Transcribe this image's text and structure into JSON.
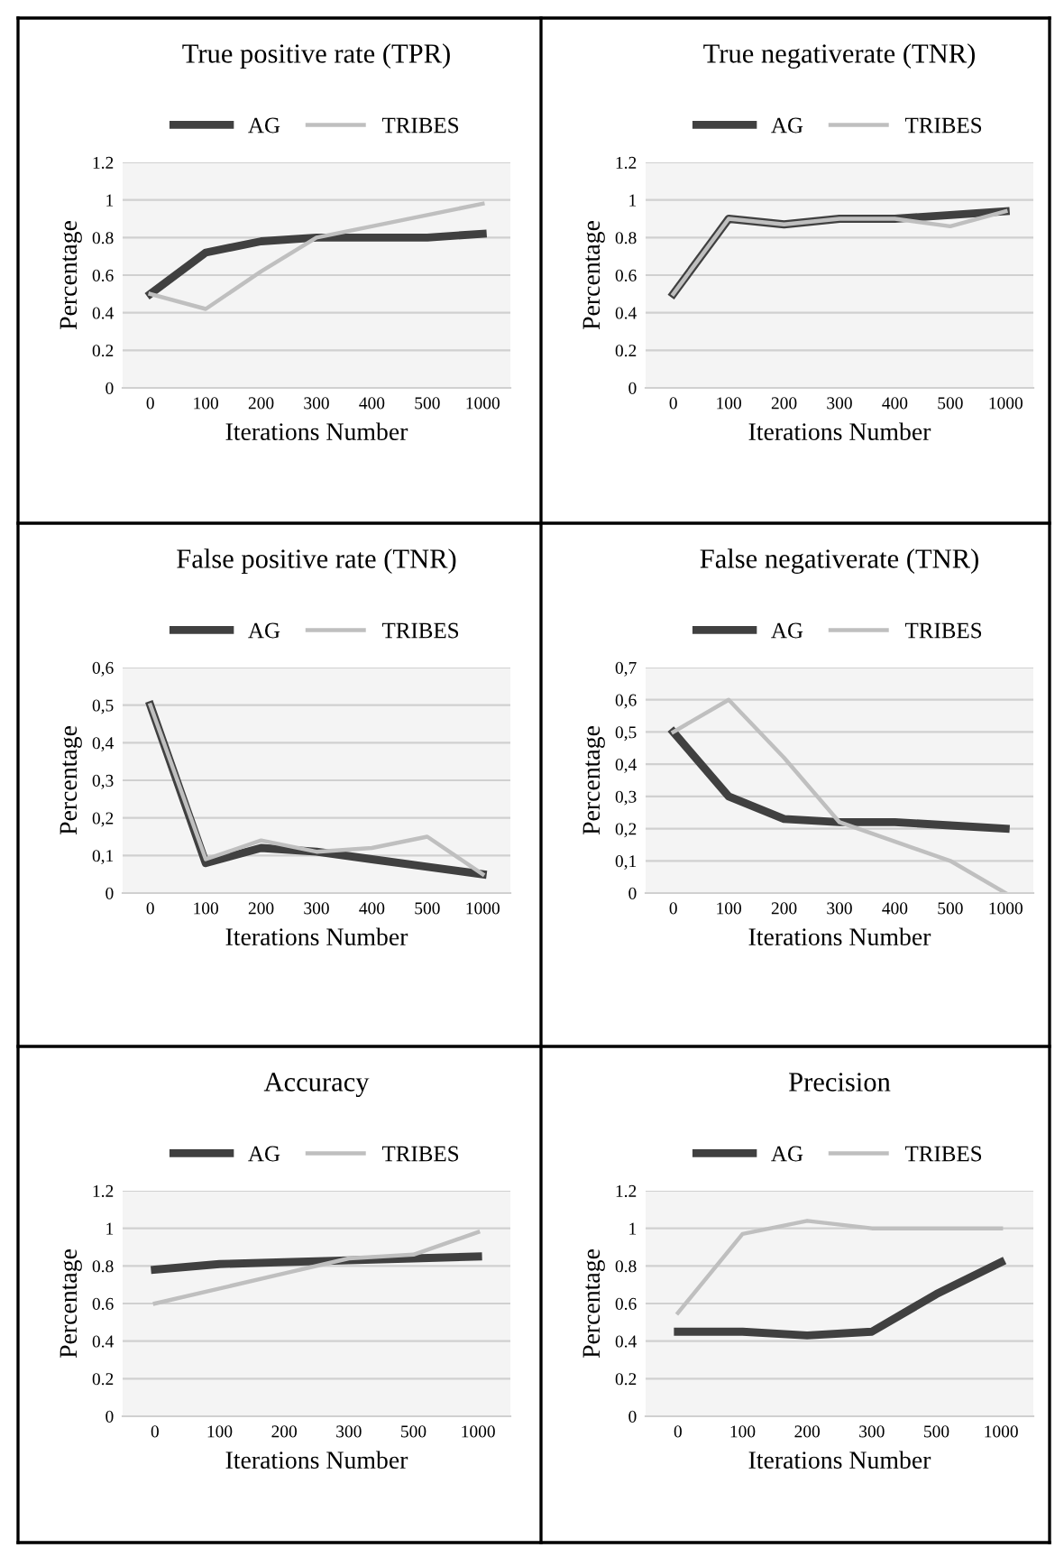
{
  "chart_data": [
    {
      "type": "line",
      "title": "True positive rate (TPR)",
      "xlabel": "Iterations Number",
      "ylabel": "Percentage",
      "categories": [
        "0",
        "100",
        "200",
        "300",
        "400",
        "500",
        "1000"
      ],
      "series": [
        {
          "name": "AG",
          "color": "#404040",
          "values": [
            0.5,
            0.72,
            0.78,
            0.8,
            0.8,
            0.8,
            0.82
          ]
        },
        {
          "name": "TRIBES",
          "color": "#bfbfbf",
          "values": [
            0.5,
            0.42,
            0.62,
            0.8,
            0.86,
            0.92,
            0.98
          ]
        }
      ],
      "ylim": [
        0,
        1.2
      ],
      "yticks": [
        0,
        0.2,
        0.4,
        0.6,
        0.8,
        1,
        1.2
      ],
      "grid": "y",
      "legend": "top"
    },
    {
      "type": "line",
      "title": "True negativerate (TNR)",
      "xlabel": "Iterations Number",
      "ylabel": "Percentage",
      "categories": [
        "0",
        "100",
        "200",
        "300",
        "400",
        "500",
        "1000"
      ],
      "series": [
        {
          "name": "AG",
          "color": "#404040",
          "values": [
            0.5,
            0.9,
            0.87,
            0.9,
            0.9,
            0.92,
            0.94
          ]
        },
        {
          "name": "TRIBES",
          "color": "#bfbfbf",
          "values": [
            0.5,
            0.9,
            0.87,
            0.9,
            0.9,
            0.86,
            0.94
          ]
        }
      ],
      "ylim": [
        0,
        1.2
      ],
      "yticks": [
        0,
        0.2,
        0.4,
        0.6,
        0.8,
        1,
        1.2
      ],
      "grid": "y",
      "legend": "top"
    },
    {
      "type": "line",
      "title": "False positive rate (TNR)",
      "xlabel": "Iterations Number",
      "ylabel": "Percentage",
      "categories": [
        "0",
        "100",
        "200",
        "300",
        "400",
        "500",
        "1000"
      ],
      "series": [
        {
          "name": "AG",
          "color": "#404040",
          "values": [
            0.5,
            0.08,
            0.12,
            0.11,
            0.09,
            0.07,
            0.05
          ]
        },
        {
          "name": "TRIBES",
          "color": "#bfbfbf",
          "values": [
            0.5,
            0.09,
            0.14,
            0.11,
            0.12,
            0.15,
            0.05
          ]
        }
      ],
      "ylim": [
        0,
        0.6
      ],
      "yticks": [
        0,
        {
          "value": 0.1,
          "label": "0,1"
        },
        {
          "value": 0.2,
          "label": "0,2"
        },
        {
          "value": 0.3,
          "label": "0,3"
        },
        {
          "value": 0.4,
          "label": "0,4"
        },
        {
          "value": 0.5,
          "label": "0,5"
        },
        {
          "value": 0.6,
          "label": "0,6"
        }
      ],
      "grid": "y",
      "legend": "top"
    },
    {
      "type": "line",
      "title": "False negativerate (TNR)",
      "xlabel": "Iterations Number",
      "ylabel": "Percentage",
      "categories": [
        "0",
        "100",
        "200",
        "300",
        "400",
        "500",
        "1000"
      ],
      "series": [
        {
          "name": "AG",
          "color": "#404040",
          "values": [
            0.5,
            0.3,
            0.23,
            0.22,
            0.22,
            0.21,
            0.2
          ]
        },
        {
          "name": "TRIBES",
          "color": "#bfbfbf",
          "values": [
            0.5,
            0.6,
            0.42,
            0.22,
            0.16,
            0.1,
            0.0
          ]
        }
      ],
      "ylim": [
        0,
        0.7
      ],
      "yticks": [
        0,
        {
          "value": 0.1,
          "label": "0,1"
        },
        {
          "value": 0.2,
          "label": "0,2"
        },
        {
          "value": 0.3,
          "label": "0,3"
        },
        {
          "value": 0.4,
          "label": "0,4"
        },
        {
          "value": 0.5,
          "label": "0,5"
        },
        {
          "value": 0.6,
          "label": "0,6"
        },
        {
          "value": 0.7,
          "label": "0,7"
        }
      ],
      "grid": "y",
      "legend": "top"
    },
    {
      "type": "line",
      "title": "Accuracy",
      "xlabel": "Iterations Number",
      "ylabel": "Percentage",
      "categories": [
        "0",
        "100",
        "200",
        "300",
        "500",
        "1000"
      ],
      "series": [
        {
          "name": "AG",
          "color": "#404040",
          "values": [
            0.78,
            0.81,
            0.82,
            0.83,
            0.84,
            0.85
          ]
        },
        {
          "name": "TRIBES",
          "color": "#bfbfbf",
          "values": [
            0.6,
            0.68,
            0.76,
            0.84,
            0.86,
            0.98
          ]
        }
      ],
      "ylim": [
        0,
        1.2
      ],
      "yticks": [
        0,
        0.2,
        0.4,
        0.6,
        0.8,
        1,
        1.2
      ],
      "grid": "y",
      "legend": "top"
    },
    {
      "type": "line",
      "title": "Precision",
      "xlabel": "Iterations Number",
      "ylabel": "Percentage",
      "categories": [
        "0",
        "100",
        "200",
        "300",
        "500",
        "1000"
      ],
      "series": [
        {
          "name": "AG",
          "color": "#404040",
          "values": [
            0.45,
            0.45,
            0.43,
            0.45,
            0.65,
            0.82
          ]
        },
        {
          "name": "TRIBES",
          "color": "#bfbfbf",
          "values": [
            0.55,
            0.97,
            1.04,
            1.0,
            1.0,
            1.0
          ]
        }
      ],
      "ylim": [
        0,
        1.2
      ],
      "yticks": [
        0,
        0.2,
        0.4,
        0.6,
        0.8,
        1,
        1.2
      ],
      "grid": "y",
      "legend": "top"
    }
  ]
}
